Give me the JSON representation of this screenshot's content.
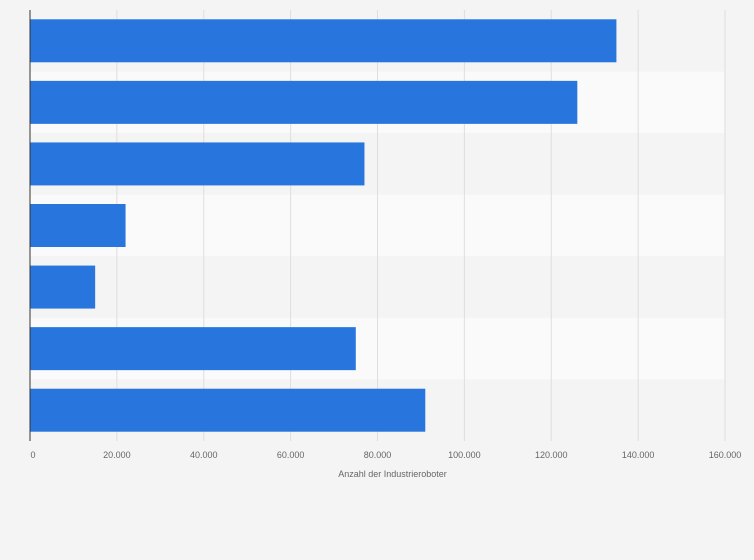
{
  "chart_data": {
    "type": "bar",
    "orientation": "horizontal",
    "title": "",
    "xlabel": "Anzahl der Industrieroboter",
    "ylabel": "",
    "categories": [
      "",
      "",
      "",
      "",
      "",
      "",
      ""
    ],
    "values": [
      135000,
      126000,
      77000,
      22000,
      15000,
      75000,
      91000
    ],
    "xlim": [
      0,
      160000
    ],
    "ticks": [
      0,
      20000,
      40000,
      60000,
      80000,
      100000,
      120000,
      140000,
      160000
    ],
    "tick_labels": [
      "0",
      "20.000",
      "40.000",
      "60.000",
      "80.000",
      "100.000",
      "120.000",
      "140.000",
      "160.000"
    ],
    "grid": true,
    "colors": {
      "bar": "#2876dd",
      "band_light": "#fafafa",
      "band_dark": "#f4f4f4",
      "grid": "#dedede",
      "axis": "#333333",
      "text": "#666666"
    }
  }
}
